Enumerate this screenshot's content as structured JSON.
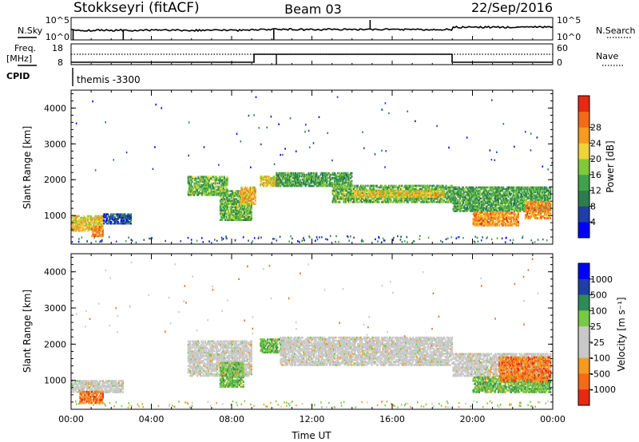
{
  "header": {
    "radar": "Stokkseyri (fitACF)",
    "beam": "Beam 03",
    "date": "22/Sep/2016"
  },
  "summary_panels": {
    "nsky": {
      "left_label": "N.Sky",
      "right_label": "N.Search",
      "left_ticks": [
        "10^5",
        "10^0"
      ],
      "right_ticks": [
        "10^5",
        "10^0"
      ]
    },
    "freq": {
      "left_label": "Freq.",
      "unit": "[MHz]",
      "right_label": "Nave",
      "left_ticks": [
        "18",
        "8"
      ],
      "right_ticks": [
        "60",
        "0"
      ]
    },
    "cpid": {
      "label": "CPID",
      "value": "themis -3300"
    }
  },
  "colors": {
    "power_scale": [
      "#0000ff",
      "#1f3fa6",
      "#2e7d4f",
      "#3ea34a",
      "#7fc93a",
      "#f0d23a",
      "#f59a22",
      "#f26a1a",
      "#e62a12"
    ],
    "velocity_scale": [
      "#e62a12",
      "#f26a1a",
      "#f59a22",
      "#c8c8c8",
      "#c8c8c8",
      "#79c944",
      "#2e8b57",
      "#1f3fa6",
      "#0000ff"
    ],
    "ground_scatter": "#c8c8c8"
  },
  "chart_data": [
    {
      "type": "heatmap",
      "name": "power",
      "ylabel": "Slant Range [km]",
      "yticks": [
        "1000",
        "2000",
        "3000",
        "4000"
      ],
      "ylim": [
        200,
        4500
      ],
      "xlim": [
        0,
        24
      ],
      "colorbar": {
        "label": "Power [dB]",
        "ticks": [
          "4",
          "8",
          "12",
          "16",
          "20",
          "24",
          "28"
        ],
        "range": [
          0,
          32
        ]
      },
      "bands": [
        {
          "t0": 0.0,
          "t1": 1.6,
          "r0": 550,
          "r1": 1000,
          "level": 20
        },
        {
          "t0": 1.0,
          "t1": 1.6,
          "r0": 400,
          "r1": 700,
          "level": 24
        },
        {
          "t0": 1.6,
          "t1": 3.0,
          "r0": 750,
          "r1": 1050,
          "level": 6
        },
        {
          "t0": 5.8,
          "t1": 7.8,
          "r0": 1550,
          "r1": 2100,
          "level": 14
        },
        {
          "t0": 7.4,
          "t1": 9.0,
          "r0": 850,
          "r1": 1700,
          "level": 14
        },
        {
          "t0": 8.4,
          "t1": 9.2,
          "r0": 1300,
          "r1": 1800,
          "level": 22
        },
        {
          "t0": 9.4,
          "t1": 10.4,
          "r0": 1800,
          "r1": 2100,
          "level": 20
        },
        {
          "t0": 10.2,
          "t1": 14.0,
          "r0": 1800,
          "r1": 2200,
          "level": 12
        },
        {
          "t0": 13.0,
          "t1": 19.0,
          "r0": 1350,
          "r1": 1850,
          "level": 14
        },
        {
          "t0": 14.0,
          "t1": 18.6,
          "r0": 1500,
          "r1": 1700,
          "level": 20
        },
        {
          "t0": 19.0,
          "t1": 23.9,
          "r0": 1100,
          "r1": 1800,
          "level": 12
        },
        {
          "t0": 20.0,
          "t1": 22.3,
          "r0": 700,
          "r1": 1100,
          "level": 24
        },
        {
          "t0": 22.6,
          "t1": 23.9,
          "r0": 900,
          "r1": 1400,
          "level": 24
        }
      ]
    },
    {
      "type": "heatmap",
      "name": "velocity",
      "ylabel": "Slant Range [km]",
      "yticks": [
        "1000",
        "2000",
        "3000",
        "4000"
      ],
      "ylim": [
        200,
        4500
      ],
      "xlabel": "Time UT",
      "xticks": [
        "00:00",
        "04:00",
        "08:00",
        "12:00",
        "16:00",
        "20:00",
        "00:00"
      ],
      "xlim": [
        0,
        24
      ],
      "colorbar": {
        "label": "Velocity [m s⁻¹]",
        "ticks": [
          "1000",
          "500",
          "100",
          "25",
          "-25",
          "-100",
          "-500",
          "-1000"
        ]
      },
      "bands": [
        {
          "t0": 0.0,
          "t1": 2.6,
          "r0": 650,
          "r1": 1000,
          "class": "gs"
        },
        {
          "t0": 0.4,
          "t1": 1.6,
          "r0": 350,
          "r1": 700,
          "class": "neg"
        },
        {
          "t0": 5.8,
          "t1": 9.0,
          "r0": 1100,
          "r1": 2100,
          "class": "gs"
        },
        {
          "t0": 7.4,
          "t1": 8.6,
          "r0": 800,
          "r1": 1500,
          "class": "pos"
        },
        {
          "t0": 9.4,
          "t1": 10.6,
          "r0": 1750,
          "r1": 2150,
          "class": "pos"
        },
        {
          "t0": 10.4,
          "t1": 19.0,
          "r0": 1400,
          "r1": 2200,
          "class": "gs"
        },
        {
          "t0": 19.0,
          "t1": 23.9,
          "r0": 1100,
          "r1": 1750,
          "class": "gs"
        },
        {
          "t0": 20.0,
          "t1": 23.9,
          "r0": 650,
          "r1": 1100,
          "class": "pos"
        },
        {
          "t0": 21.3,
          "t1": 23.9,
          "r0": 950,
          "r1": 1650,
          "class": "neg"
        }
      ]
    }
  ]
}
